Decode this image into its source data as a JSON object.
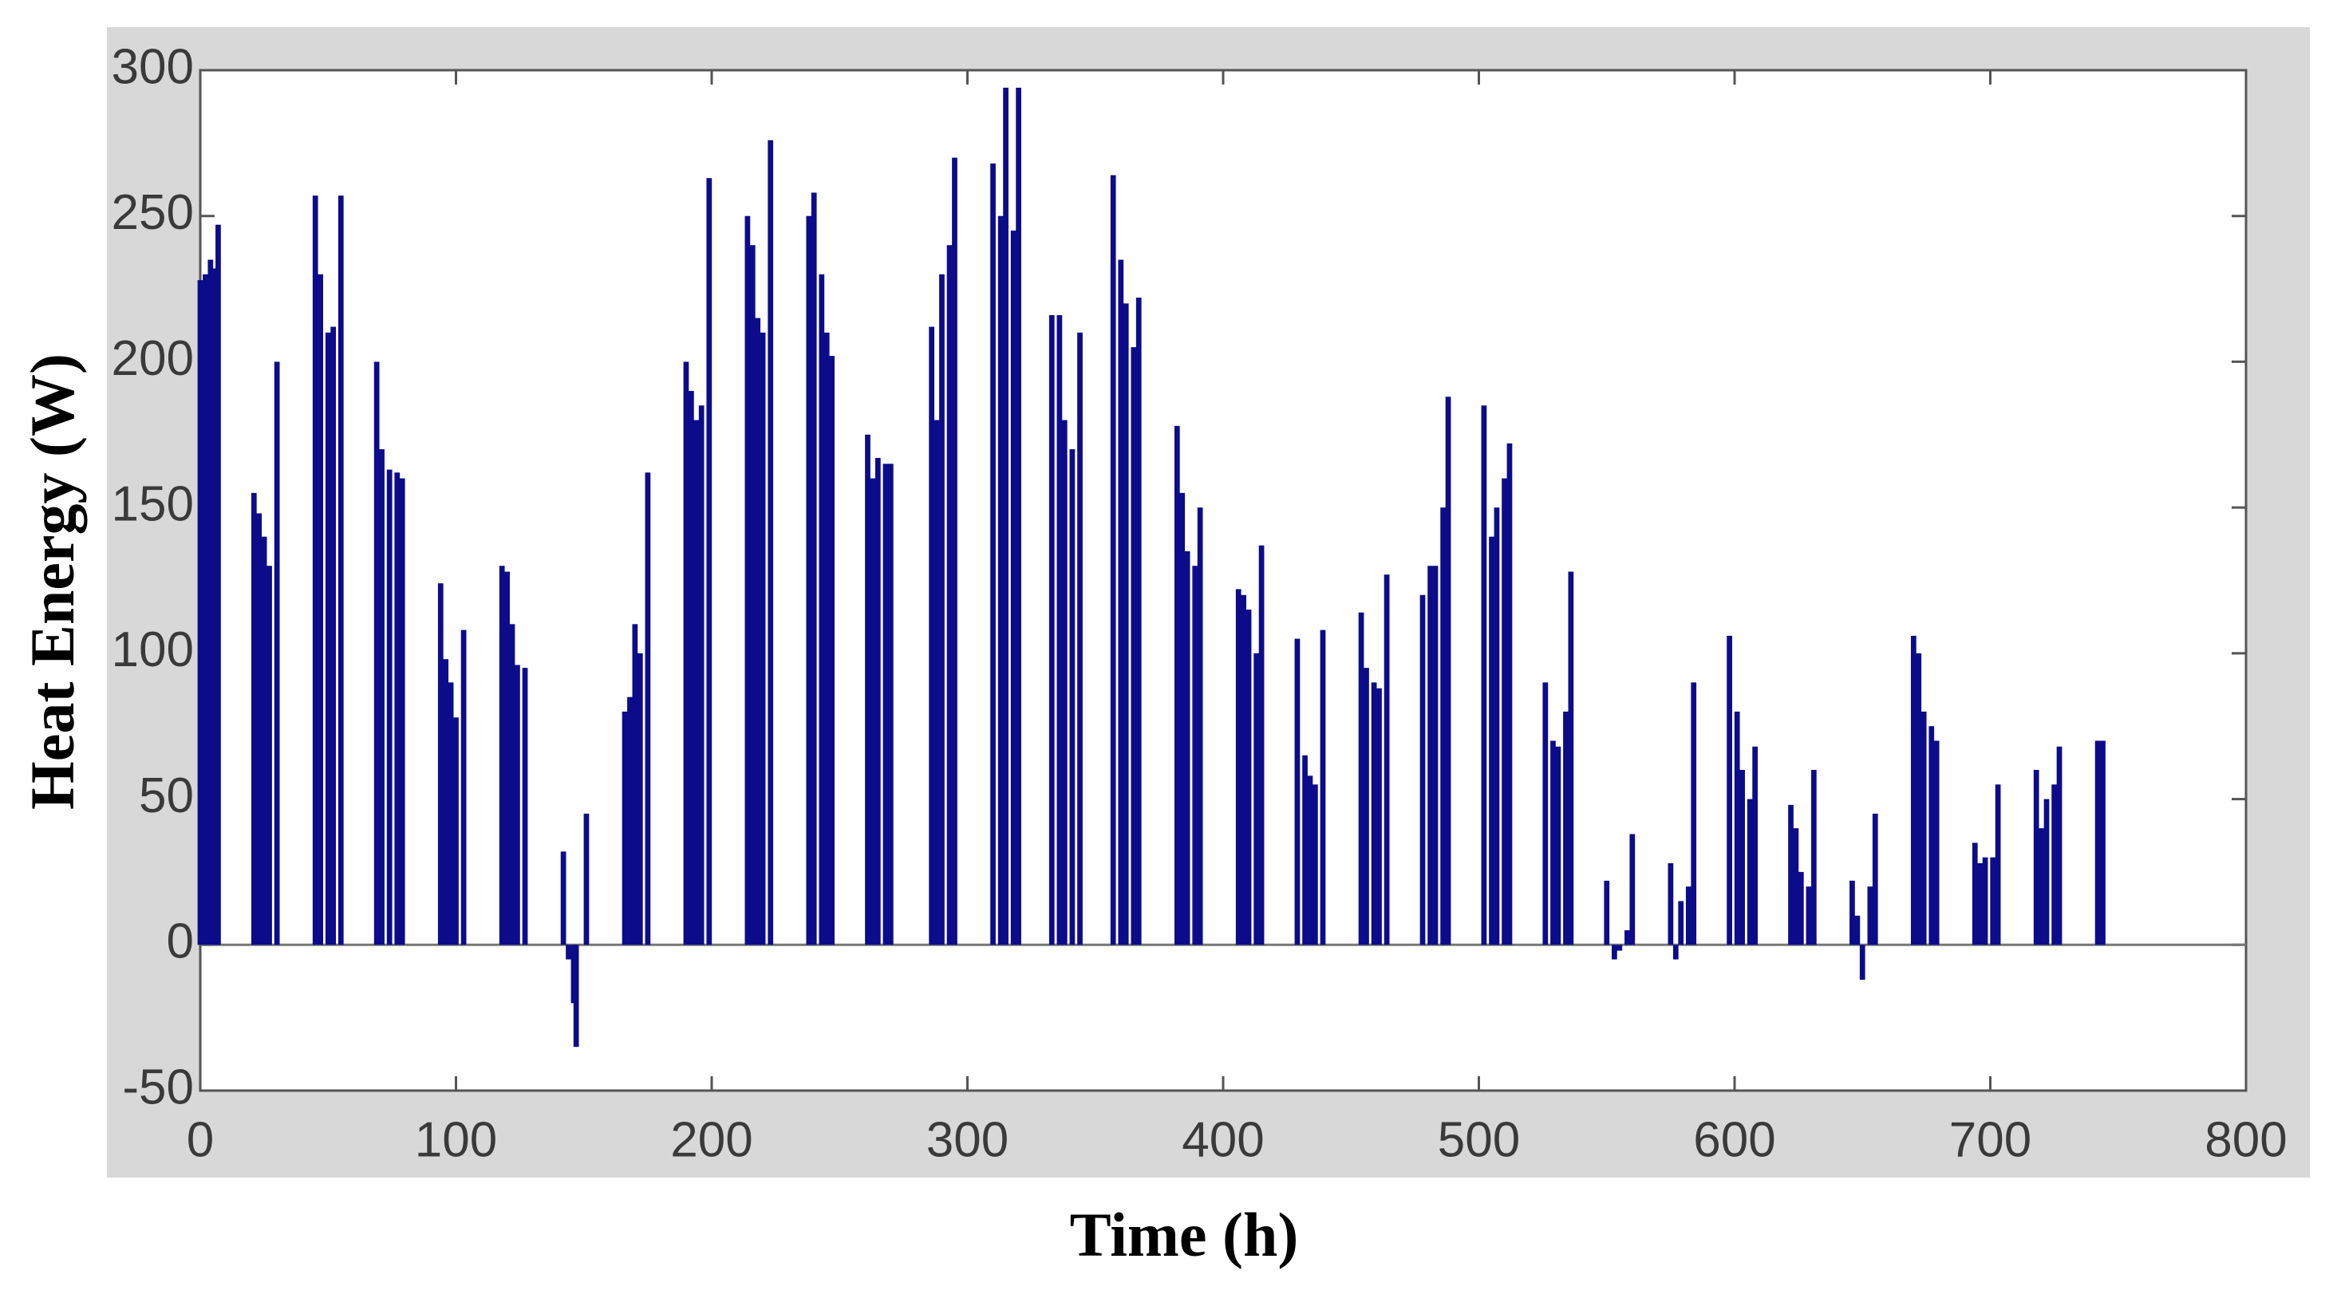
{
  "chart_data": {
    "type": "bar",
    "xlabel": "Time (h)",
    "ylabel": "Heat Energy (W)",
    "x": [
      0,
      2,
      4,
      6,
      7,
      21,
      23,
      25,
      27,
      30,
      45,
      47,
      50,
      52,
      55,
      69,
      71,
      74,
      77,
      79,
      94,
      96,
      98,
      100,
      103,
      118,
      120,
      122,
      124,
      127,
      142,
      144,
      146,
      147,
      151,
      166,
      168,
      170,
      172,
      175,
      190,
      192,
      194,
      196,
      199,
      214,
      216,
      218,
      220,
      223,
      238,
      240,
      243,
      245,
      247,
      261,
      263,
      265,
      268,
      270,
      286,
      288,
      290,
      293,
      295,
      310,
      313,
      315,
      318,
      320,
      333,
      336,
      338,
      341,
      344,
      357,
      360,
      362,
      365,
      367,
      382,
      384,
      386,
      389,
      391,
      406,
      408,
      410,
      413,
      415,
      429,
      432,
      434,
      436,
      439,
      454,
      456,
      459,
      461,
      464,
      478,
      481,
      483,
      486,
      488,
      502,
      505,
      507,
      510,
      512,
      526,
      529,
      531,
      534,
      536,
      550,
      553,
      555,
      558,
      560,
      575,
      577,
      579,
      582,
      584,
      598,
      601,
      603,
      606,
      608,
      622,
      624,
      626,
      629,
      631,
      646,
      648,
      650,
      653,
      655,
      670,
      672,
      674,
      677,
      679,
      694,
      696,
      698,
      701,
      703,
      718,
      720,
      722,
      725,
      727,
      742,
      744
    ],
    "values": [
      228,
      230,
      235,
      232,
      247,
      155,
      148,
      140,
      130,
      200,
      257,
      230,
      210,
      212,
      257,
      200,
      170,
      163,
      162,
      160,
      124,
      98,
      90,
      78,
      108,
      130,
      128,
      110,
      96,
      95,
      32,
      -5,
      -20,
      -35,
      45,
      80,
      85,
      110,
      100,
      162,
      200,
      190,
      180,
      185,
      263,
      250,
      240,
      215,
      210,
      276,
      250,
      258,
      230,
      210,
      202,
      175,
      160,
      167,
      165,
      165,
      212,
      180,
      230,
      240,
      270,
      268,
      250,
      294,
      245,
      294,
      216,
      216,
      180,
      170,
      210,
      264,
      235,
      220,
      205,
      222,
      178,
      155,
      135,
      130,
      150,
      122,
      120,
      115,
      100,
      137,
      105,
      65,
      58,
      55,
      108,
      114,
      95,
      90,
      88,
      127,
      120,
      130,
      130,
      150,
      188,
      185,
      140,
      150,
      160,
      172,
      90,
      70,
      68,
      80,
      128,
      22,
      -5,
      -2,
      5,
      38,
      28,
      -5,
      15,
      20,
      90,
      106,
      80,
      60,
      50,
      68,
      48,
      40,
      25,
      20,
      60,
      22,
      10,
      -12,
      20,
      45,
      106,
      100,
      80,
      75,
      70,
      35,
      28,
      30,
      30,
      55,
      60,
      40,
      50,
      55,
      68,
      70,
      70
    ],
    "color": "#0c0c8a",
    "xlim": [
      0,
      800
    ],
    "xticks": [
      0,
      100,
      200,
      300,
      400,
      500,
      600,
      700,
      800
    ],
    "ylim": [
      -50,
      300
    ],
    "yticks": [
      -50,
      0,
      50,
      100,
      150,
      200,
      250,
      300
    ],
    "grid": false
  }
}
